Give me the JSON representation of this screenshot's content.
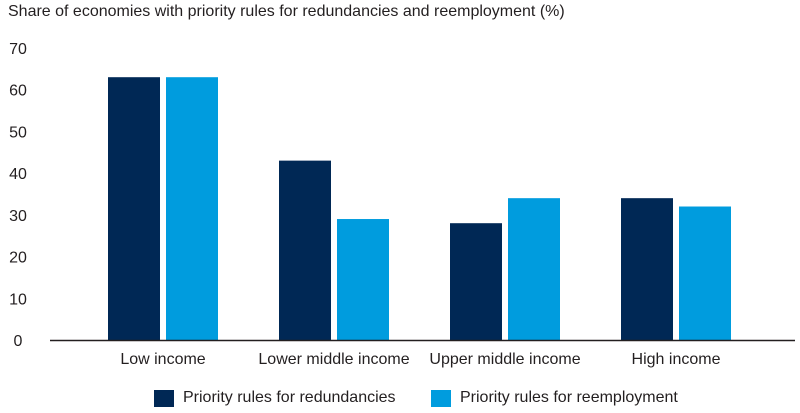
{
  "chart_data": {
    "type": "bar",
    "title": "Share of economies with priority rules for redundancies and reemployment (%)",
    "xlabel": "",
    "ylabel": "",
    "categories": [
      "Low income",
      "Lower middle income",
      "Upper middle income",
      "High income"
    ],
    "series": [
      {
        "name": "Priority rules for redundancies",
        "color": "#002855",
        "values": [
          63,
          43,
          28,
          34
        ]
      },
      {
        "name": "Priority rules for reemployment",
        "color": "#009cde",
        "values": [
          63,
          29,
          34,
          32
        ]
      }
    ],
    "ylim": [
      0,
      70
    ],
    "yticks": [
      0,
      10,
      20,
      30,
      40,
      50,
      60,
      70
    ],
    "grid": false,
    "legend_position": "bottom"
  }
}
